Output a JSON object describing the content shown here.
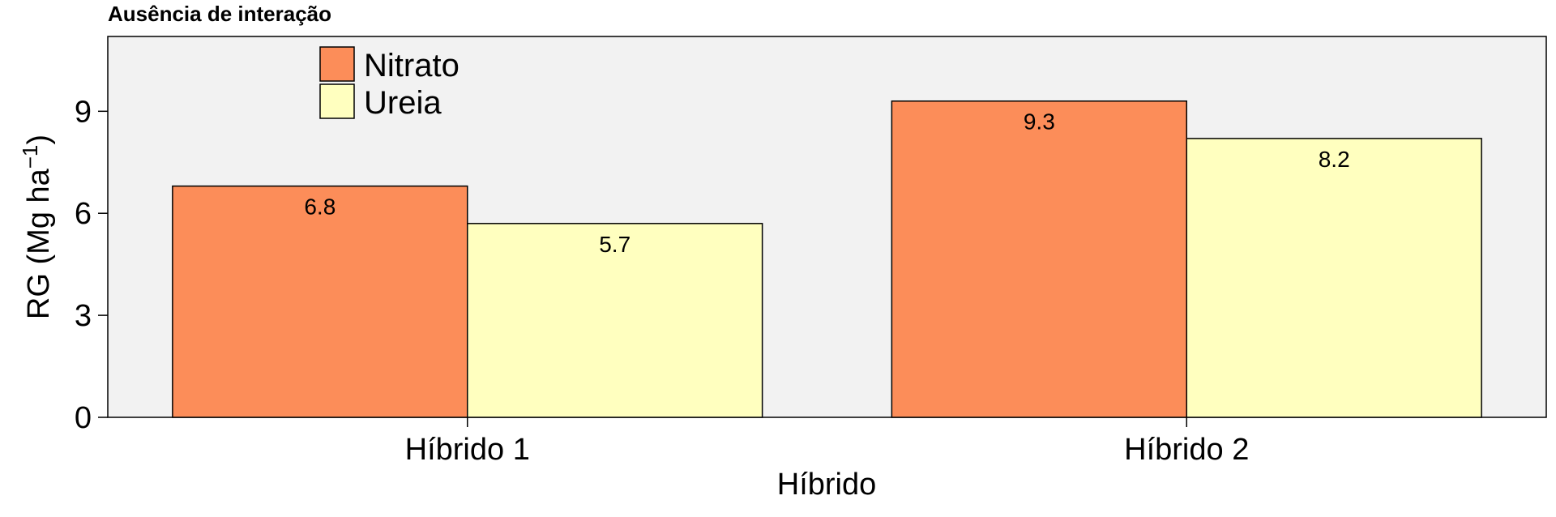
{
  "chart_data": {
    "type": "bar",
    "title": "Ausência de interação",
    "xlabel": "Híbrido",
    "ylabel": "RG (Mg ha",
    "ylabel_unit_sup": "−1",
    "ylabel_close": ")",
    "categories": [
      "Híbrido 1",
      "Híbrido 2"
    ],
    "series": [
      {
        "name": "Nitrato",
        "values": [
          6.8,
          9.3
        ],
        "labels": [
          "6.8",
          "9.3"
        ],
        "color": "#FC8D59"
      },
      {
        "name": "Ureia",
        "values": [
          5.7,
          8.2
        ],
        "labels": [
          "5.7",
          "8.2"
        ],
        "color": "#FFFFBF"
      }
    ],
    "yticks": [
      0,
      3,
      6,
      9
    ],
    "ylim": [
      0,
      11.2
    ],
    "grid": false,
    "legend_position": "top-left",
    "panel_background": "#F2F2F2"
  }
}
